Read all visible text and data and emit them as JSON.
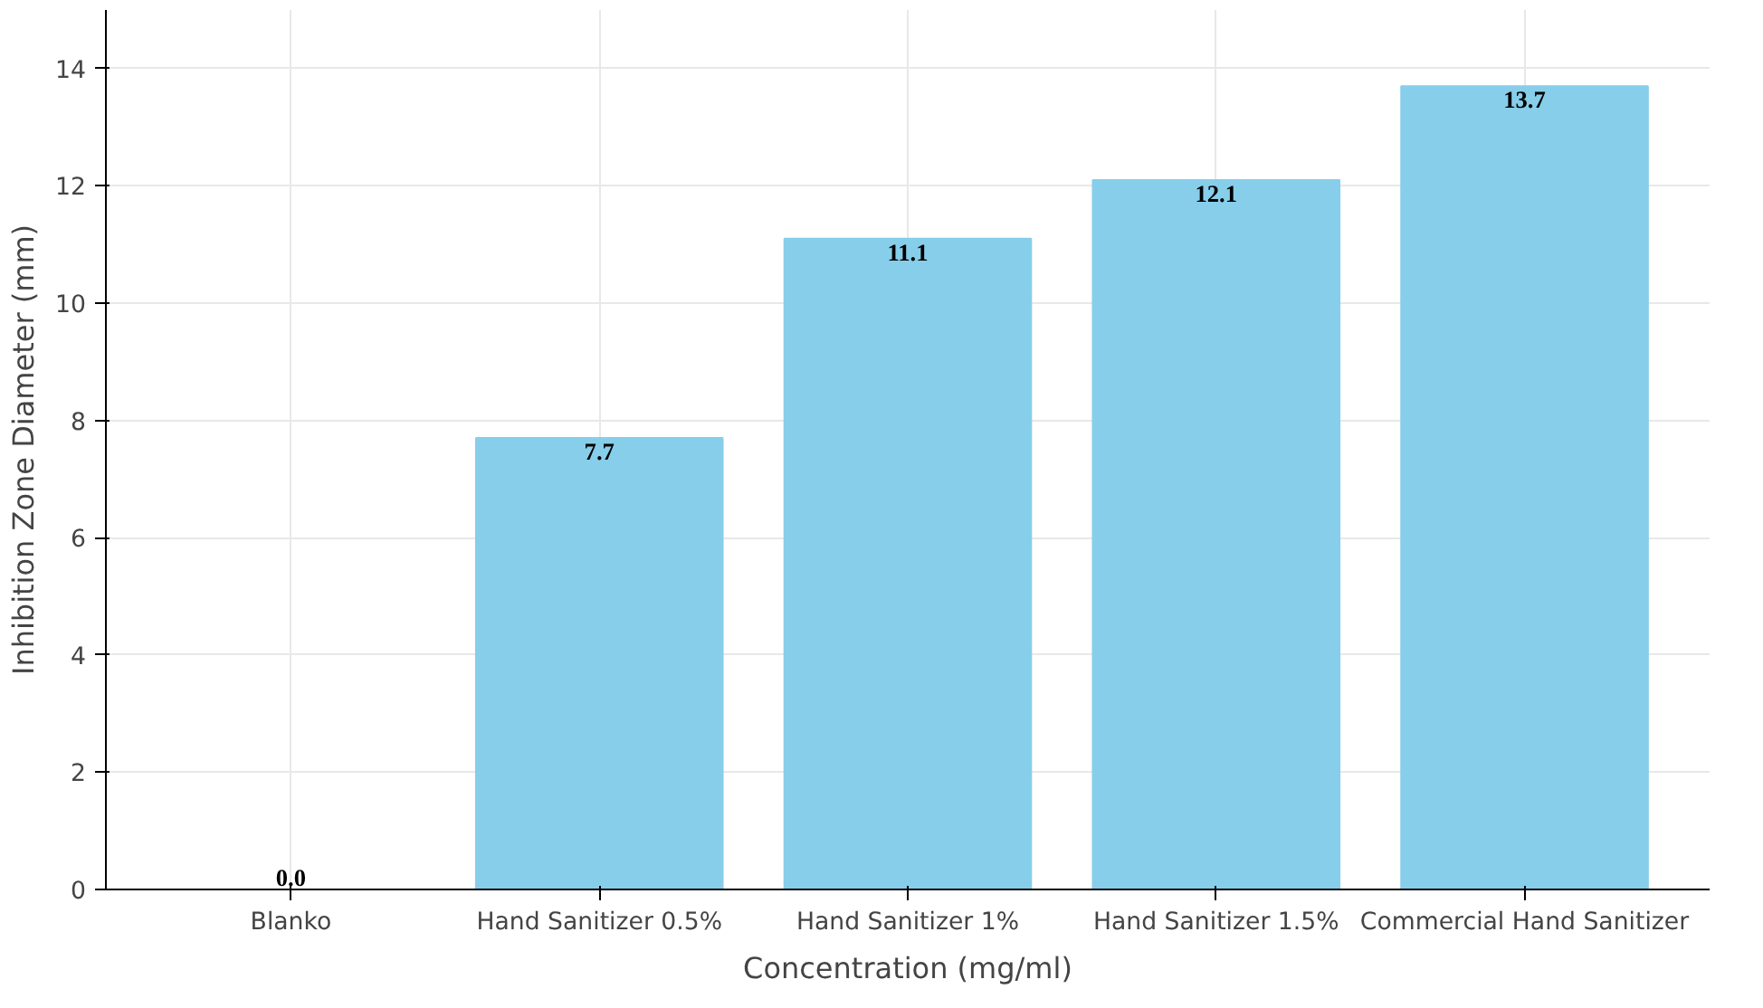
{
  "chart_data": {
    "type": "bar",
    "xlabel": "Concentration (mg/ml)",
    "ylabel": "Inhibition Zone Diameter (mm)",
    "categories": [
      "Blanko",
      "Hand Sanitizer 0.5%",
      "Hand Sanitizer 1%",
      "Hand Sanitizer 1.5%",
      "Commercial Hand Sanitizer"
    ],
    "values": [
      0.0,
      7.7,
      11.1,
      12.1,
      13.7
    ],
    "color": "#87ceeb",
    "ylim": [
      0,
      15
    ],
    "yticks": [
      0,
      2,
      4,
      6,
      8,
      10,
      12,
      14
    ],
    "grid": true,
    "value_labels": [
      "0.0",
      "7.7",
      "11.1",
      "12.1",
      "13.7"
    ]
  }
}
